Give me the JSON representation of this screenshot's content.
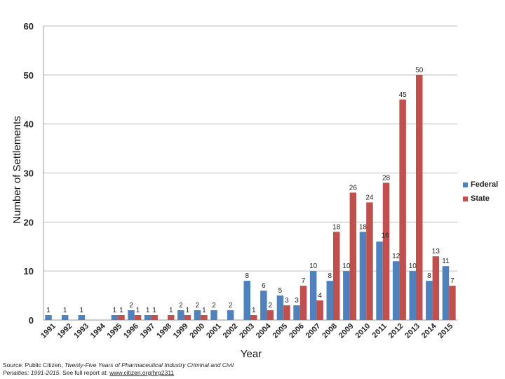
{
  "chart_data": {
    "type": "bar",
    "title": "",
    "xlabel": "Year",
    "ylabel": "Number of Settlements",
    "ylim": [
      0,
      60
    ],
    "yticks": [
      0,
      10,
      20,
      30,
      40,
      50,
      60
    ],
    "grid": true,
    "legend_position": "right",
    "categories": [
      "1991",
      "1992",
      "1993",
      "1994",
      "1995",
      "1996",
      "1997",
      "1998",
      "1999",
      "2000",
      "2001",
      "2002",
      "2003",
      "2004",
      "2005",
      "2006",
      "2007",
      "2008",
      "2009",
      "2010",
      "2011",
      "2012",
      "2013",
      "2014",
      "2015"
    ],
    "series": [
      {
        "name": "Federal",
        "color": "#4F81BD",
        "values": [
          1,
          1,
          1,
          0,
          1,
          2,
          1,
          0,
          2,
          2,
          2,
          2,
          8,
          6,
          5,
          3,
          10,
          8,
          10,
          18,
          16,
          12,
          10,
          8,
          11
        ],
        "labels": [
          "1",
          "1",
          "1",
          "",
          "1",
          "2",
          "1",
          "",
          "2",
          "2",
          "2",
          "2",
          "8",
          "6",
          "5",
          "3",
          "10",
          "8",
          "10",
          "18",
          "",
          "12",
          "10",
          "8",
          "11"
        ]
      },
      {
        "name": "State",
        "color": "#C0504D",
        "values": [
          0,
          0,
          0,
          0,
          1,
          1,
          1,
          1,
          1,
          1,
          0,
          0,
          1,
          2,
          3,
          7,
          4,
          18,
          26,
          24,
          28,
          45,
          50,
          13,
          7
        ],
        "labels": [
          "",
          "",
          "",
          "",
          "1",
          "1",
          "1",
          "1",
          "1",
          "1",
          "",
          "",
          "1",
          "2",
          "3",
          "7",
          "4",
          "18",
          "26",
          "24",
          "28",
          "45",
          "50",
          "13",
          "7"
        ]
      }
    ],
    "extra_labels": [
      {
        "text": "16",
        "category": "2011",
        "series": "Federal",
        "value": 16
      }
    ]
  },
  "source": {
    "prefix": "Source: Public Citizen, ",
    "title": "Twenty-Five Years of Pharmaceutical Industry Criminal and Civil Penalties: 1991-2015",
    "middle": ". See full report at: ",
    "link": "www.citizen.org/hrg2311"
  }
}
